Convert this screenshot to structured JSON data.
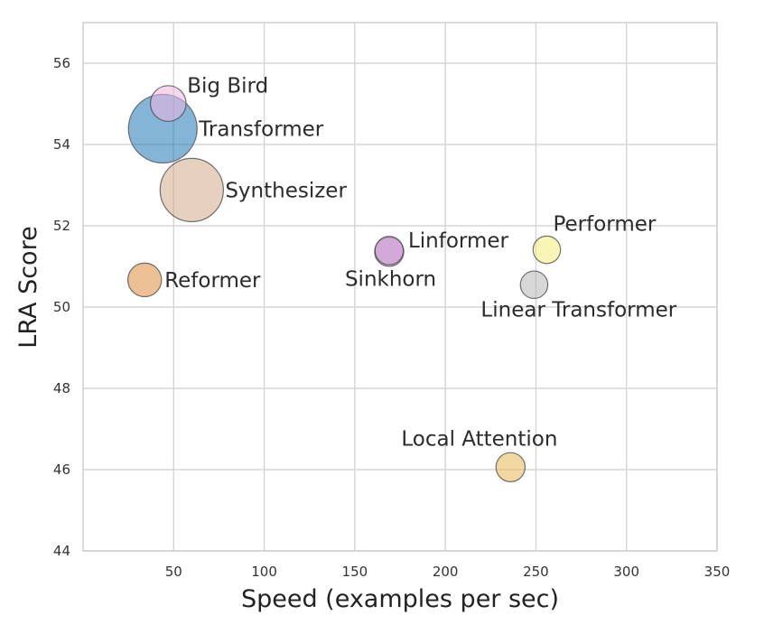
{
  "chart_data": {
    "type": "scatter",
    "title": "",
    "xlabel": "Speed (examples per sec)",
    "ylabel": "LRA Score",
    "xlim": [
      0,
      350
    ],
    "ylim": [
      44,
      57
    ],
    "x_ticks": [
      50,
      100,
      150,
      200,
      250,
      300,
      350
    ],
    "y_ticks": [
      44,
      46,
      48,
      50,
      52,
      54,
      56
    ],
    "grid": true,
    "legend": "none",
    "points": [
      {
        "label": "Transformer",
        "x": 44,
        "y": 54.39,
        "size_rel": 1.0,
        "color": "#1f77b4"
      },
      {
        "label": "Synthesizer",
        "x": 60,
        "y": 52.88,
        "size_rel": 0.85,
        "color": "#cfab88"
      },
      {
        "label": "Big Bird",
        "x": 47,
        "y": 55.01,
        "size_rel": 0.27,
        "color": "#f1b7e4"
      },
      {
        "label": "Reformer",
        "x": 34,
        "y": 50.67,
        "size_rel": 0.24,
        "color": "#de8b3c"
      },
      {
        "label": "Linformer",
        "x": 169,
        "y": 51.36,
        "size_rel": 0.18,
        "color": "#c993d0"
      },
      {
        "label": "Sinkhorn",
        "x": 169,
        "y": 51.39,
        "size_rel": 0.17,
        "color": "#c993d0"
      },
      {
        "label": "Performer",
        "x": 256,
        "y": 51.41,
        "size_rel": 0.16,
        "color": "#f4ec7a"
      },
      {
        "label": "Linear Transformer",
        "x": 249,
        "y": 50.55,
        "size_rel": 0.16,
        "color": "#b7b7b7"
      },
      {
        "label": "Local Attention",
        "x": 236,
        "y": 46.06,
        "size_rel": 0.18,
        "color": "#e6b652"
      }
    ]
  }
}
